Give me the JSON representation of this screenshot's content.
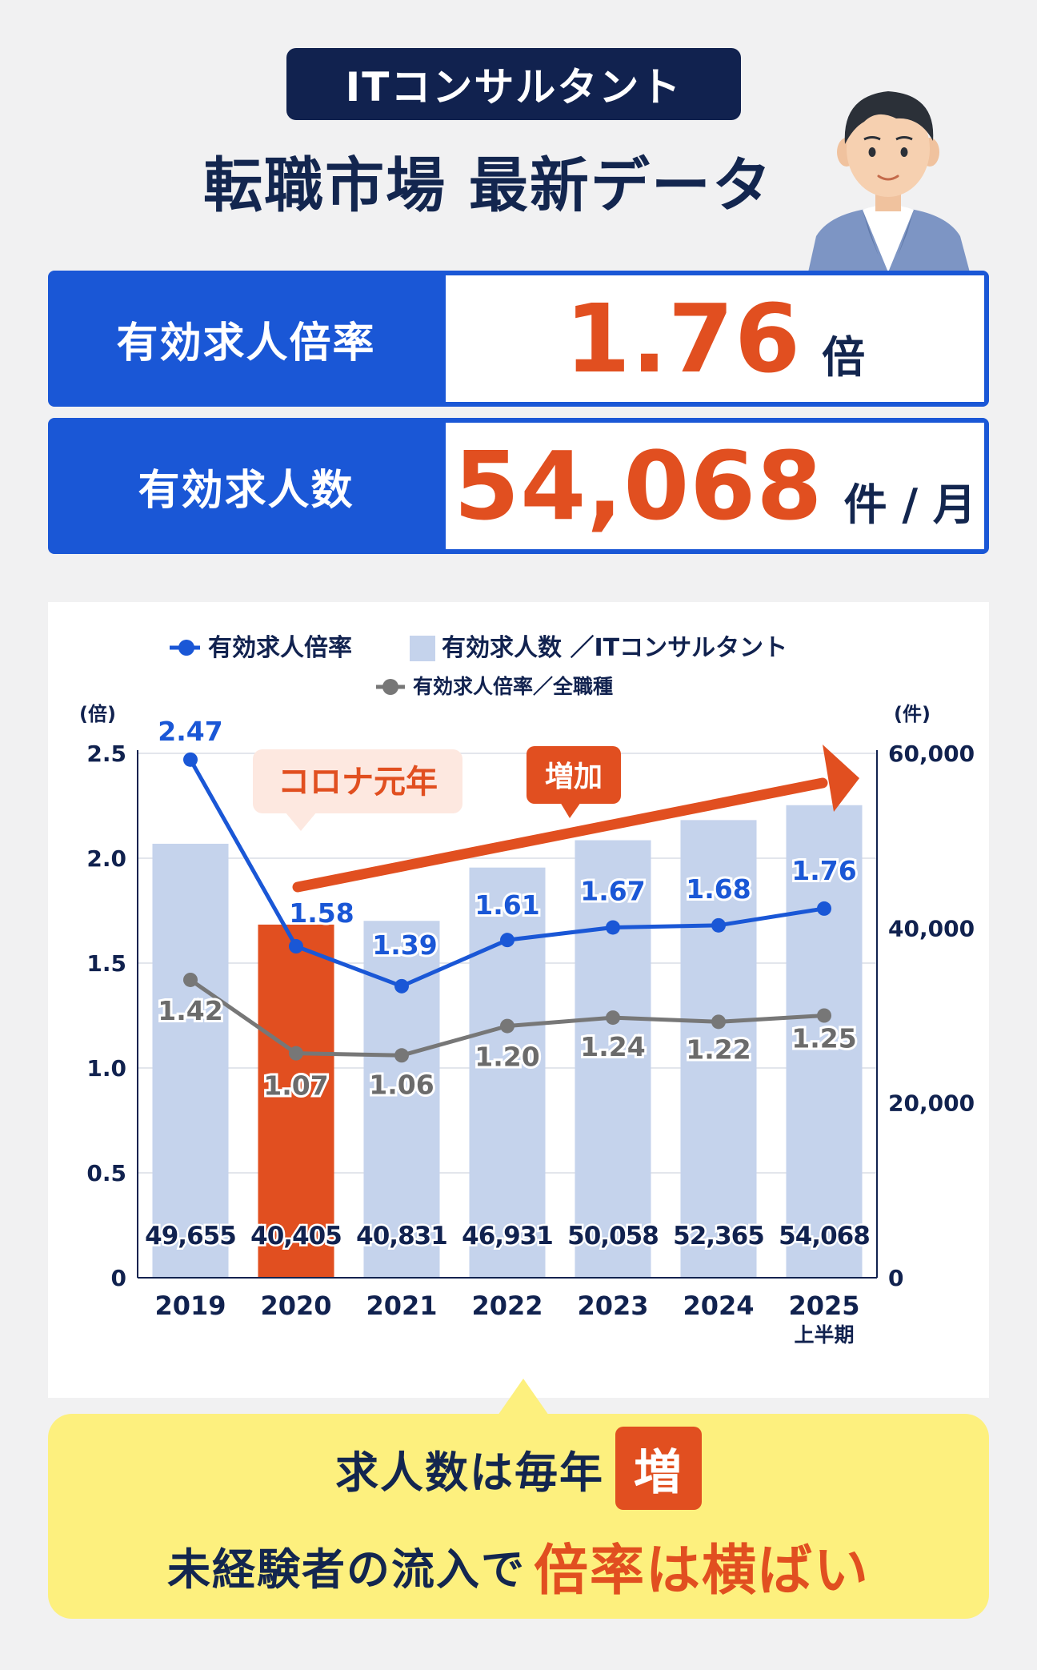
{
  "header": {
    "pill": "ITコンサルタント",
    "title": "転職市場 最新データ"
  },
  "stats": [
    {
      "label": "有効求人倍率",
      "value": "1.76",
      "unit": "倍"
    },
    {
      "label": "有効求人数",
      "value": "54,068",
      "unit": "件 / 月"
    }
  ],
  "callout": {
    "line1": "求人数は毎年",
    "badge": "増",
    "line2": "未経験者の流入で",
    "line2_highlight": "倍率は横ばい"
  },
  "colors": {
    "navy": "#11224f",
    "blue": "#1a57d6",
    "orange": "#e14f20",
    "bar": "#c5d3ec",
    "gray_line": "#777777",
    "callout_bg": "#fdf07e"
  },
  "chart_data": {
    "type": "bar",
    "categories": [
      "2019",
      "2020",
      "2021",
      "2022",
      "2023",
      "2024",
      "2025"
    ],
    "category_sublabels": [
      "",
      "",
      "",
      "",
      "",
      "",
      "上半期"
    ],
    "highlight_category": "2020",
    "legend": {
      "ratio_it": "有効求人倍率",
      "count_it": "有効求人数 ／ITコンサルタント",
      "ratio_all": "有効求人倍率／全職種"
    },
    "left_axis": {
      "unit": "(倍)",
      "min": 0,
      "max": 2.5,
      "ticks": [
        "0",
        "0.5",
        "1.0",
        "1.5",
        "2.0",
        "2.5"
      ]
    },
    "right_axis": {
      "unit": "(件)",
      "min": 0,
      "max": 60000,
      "ticks": [
        "0",
        "20,000",
        "40,000",
        "60,000"
      ]
    },
    "series": [
      {
        "name": "有効求人数 ／ITコンサルタント",
        "kind": "bar",
        "axis": "right",
        "values": [
          49655,
          40405,
          40831,
          46931,
          50058,
          52365,
          54068
        ],
        "labels": [
          "49,655",
          "40,405",
          "40,831",
          "46,931",
          "50,058",
          "52,365",
          "54,068"
        ]
      },
      {
        "name": "有効求人倍率",
        "kind": "line",
        "axis": "left",
        "values": [
          2.47,
          1.58,
          1.39,
          1.61,
          1.67,
          1.68,
          1.76
        ],
        "labels": [
          "2.47",
          "1.58",
          "1.39",
          "1.61",
          "1.67",
          "1.68",
          "1.76"
        ]
      },
      {
        "name": "有効求人倍率／全職種",
        "kind": "line",
        "axis": "left",
        "values": [
          1.42,
          1.07,
          1.06,
          1.2,
          1.24,
          1.22,
          1.25
        ],
        "labels": [
          "1.42",
          "1.07",
          "1.06",
          "1.20",
          "1.24",
          "1.22",
          "1.25"
        ]
      }
    ],
    "annotations": {
      "corona": "コロナ元年",
      "increase": "増加"
    },
    "grid": true,
    "legend_position": "top-center"
  }
}
